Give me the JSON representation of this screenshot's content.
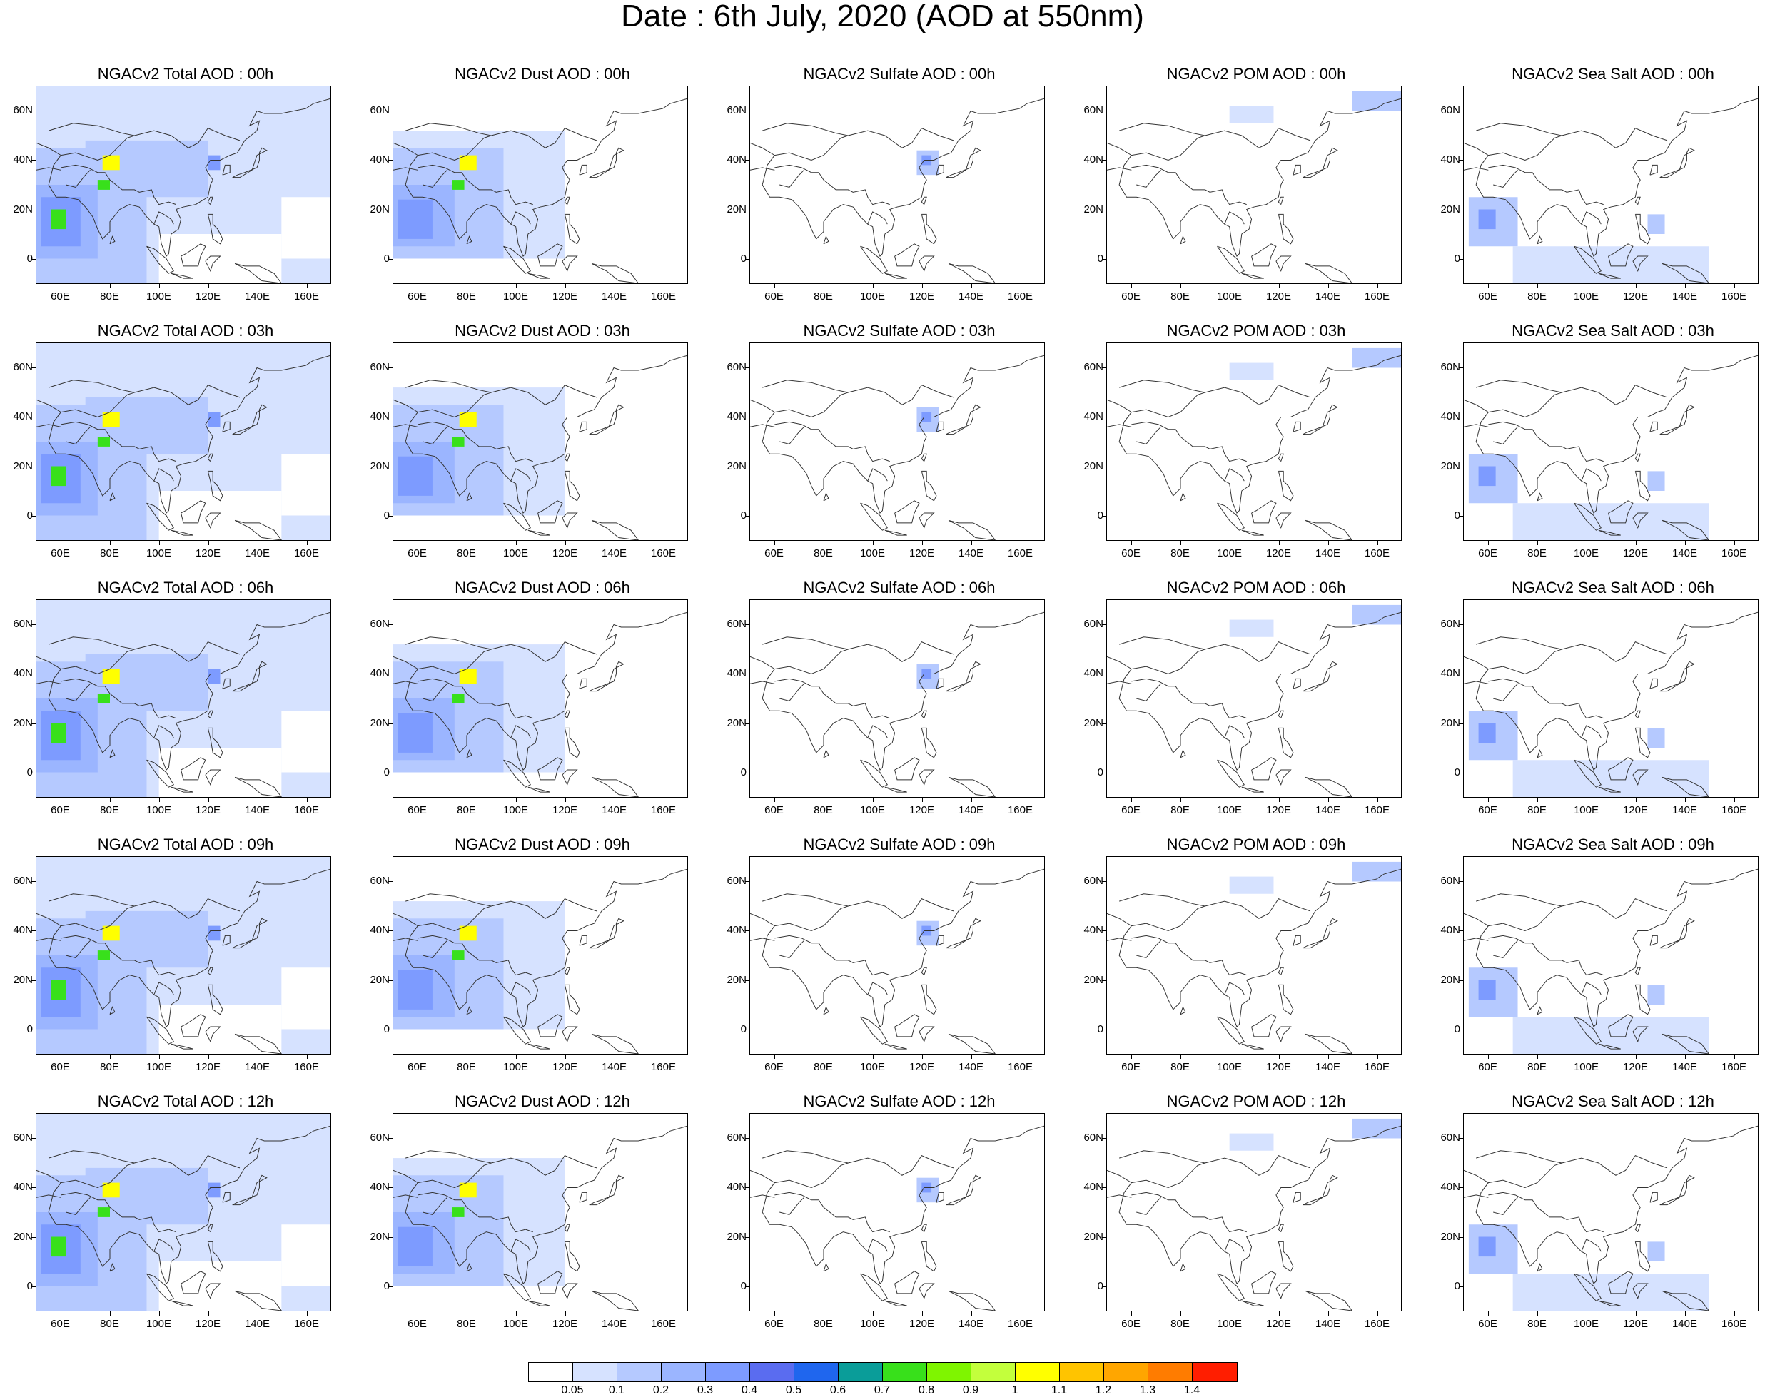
{
  "title": "Date : 6th July, 2020 (AOD at 550nm)",
  "rows": [
    {
      "hour": "00h",
      "panels": [
        "NGACv2 Total AOD : 00h",
        "NGACv2 Dust AOD : 00h",
        "NGACv2 Sulfate AOD : 00h",
        "NGACv2 POM AOD : 00h",
        "NGACv2 Sea Salt AOD : 00h"
      ]
    },
    {
      "hour": "03h",
      "panels": [
        "NGACv2 Total AOD : 03h",
        "NGACv2 Dust AOD : 03h",
        "NGACv2 Sulfate AOD : 03h",
        "NGACv2 POM AOD : 03h",
        "NGACv2 Sea Salt AOD : 03h"
      ]
    },
    {
      "hour": "06h",
      "panels": [
        "NGACv2 Total AOD : 06h",
        "NGACv2 Dust AOD : 06h",
        "NGACv2 Sulfate AOD : 06h",
        "NGACv2 POM AOD : 06h",
        "NGACv2 Sea Salt AOD : 06h"
      ]
    },
    {
      "hour": "09h",
      "panels": [
        "NGACv2 Total AOD : 09h",
        "NGACv2 Dust AOD : 09h",
        "NGACv2 Sulfate AOD : 09h",
        "NGACv2 POM AOD : 09h",
        "NGACv2 Sea Salt  AOD : 09h"
      ]
    },
    {
      "hour": "12h",
      "panels": [
        "NGACv2 Total AOD  : 12h",
        "NGACv2 Dust AOD : 12h",
        "NGACv2 Sulfate AOD : 12h",
        "NGACv2 POM  AOD : 12h",
        "NGACv2 Sea Salt  AOD : 12h"
      ]
    }
  ],
  "axes": {
    "lon_ticks": [
      "60E",
      "80E",
      "100E",
      "120E",
      "140E",
      "160E"
    ],
    "lon_values": [
      60,
      80,
      100,
      120,
      140,
      160
    ],
    "lat_ticks": [
      "60N",
      "40N",
      "20N",
      "0"
    ],
    "lat_values": [
      60,
      40,
      20,
      0
    ],
    "lon_range": [
      50,
      170
    ],
    "lat_range": [
      -10,
      70
    ]
  },
  "colorbar": {
    "labels": [
      "0.05",
      "0.1",
      "0.2",
      "0.3",
      "0.4",
      "0.5",
      "0.6",
      "0.7",
      "0.8",
      "0.9",
      "1",
      "1.1",
      "1.2",
      "1.3",
      "1.4"
    ],
    "colors": [
      "#ffffff",
      "#d6e2ff",
      "#b5c9ff",
      "#9bb5ff",
      "#7d9bff",
      "#5a6cf0",
      "#1f66ee",
      "#0a9d99",
      "#38e01b",
      "#7ff500",
      "#c3ff3c",
      "#ffff00",
      "#ffc400",
      "#ffa600",
      "#ff7c00",
      "#ff1e00"
    ]
  }
}
